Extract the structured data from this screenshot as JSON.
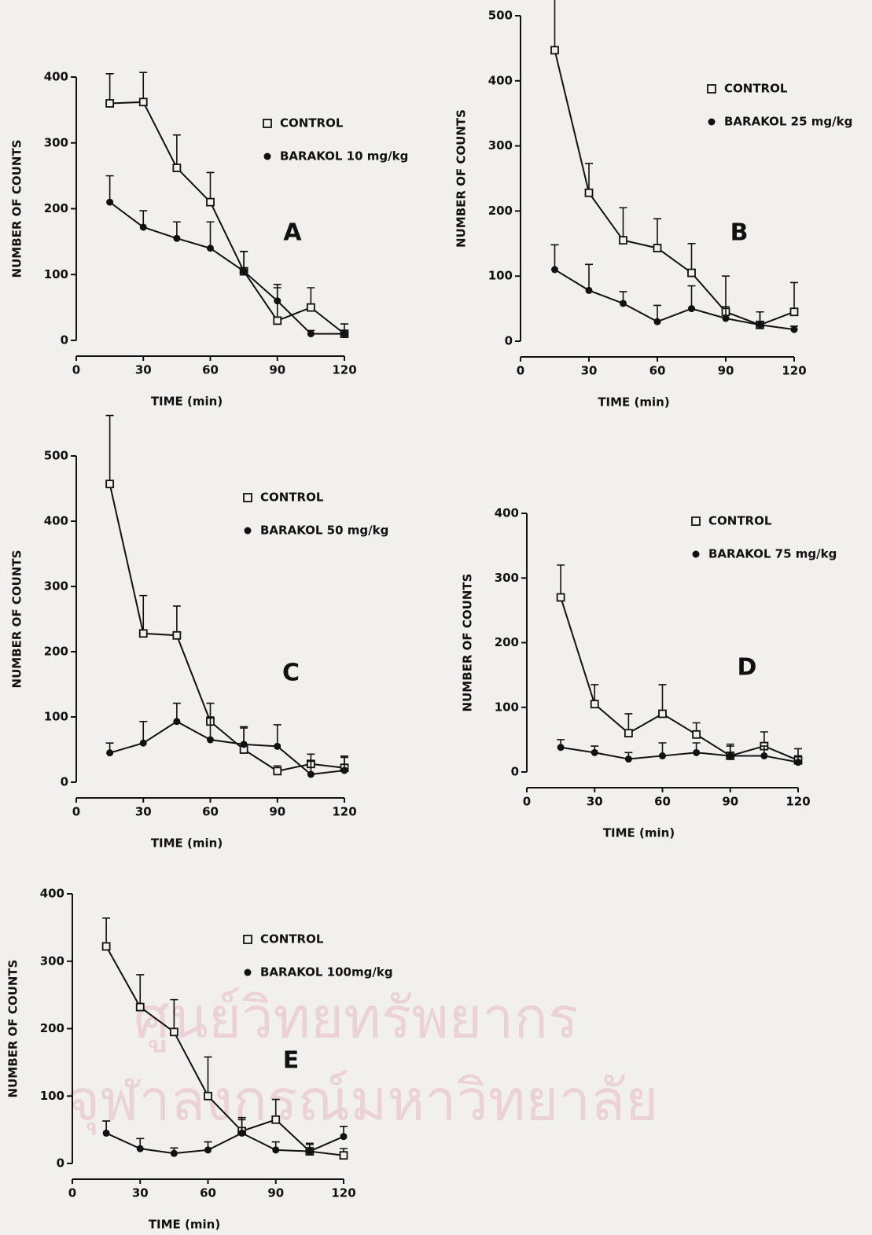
{
  "watermark": [
    "ศูนย์วิทยทรัพยากร",
    "จุฬาลงกรณ์มหาวิทยาลัย"
  ],
  "chart_data": [
    {
      "type": "line",
      "panel_label": "A",
      "xlabel": "TIME (min)",
      "ylabel": "NUMBER OF COUNTS",
      "x": [
        15,
        30,
        45,
        60,
        75,
        90,
        105,
        120
      ],
      "xlim": [
        0,
        120
      ],
      "xticks": [
        0,
        30,
        60,
        90,
        120
      ],
      "ylim": [
        0,
        400
      ],
      "yticks": [
        0,
        100,
        200,
        300,
        400
      ],
      "series": [
        {
          "name": "CONTROL",
          "marker": "square",
          "color": "#111111",
          "values": [
            360,
            362,
            262,
            210,
            105,
            30,
            50,
            10
          ],
          "errors": [
            45,
            45,
            50,
            45,
            30,
            50,
            30,
            15
          ]
        },
        {
          "name": "BARAKOL 10 mg/kg",
          "marker": "circle",
          "color": "#111111",
          "values": [
            210,
            172,
            155,
            140,
            105,
            60,
            10,
            10
          ],
          "errors": [
            40,
            25,
            25,
            40,
            30,
            25,
            5,
            5
          ]
        }
      ]
    },
    {
      "type": "line",
      "panel_label": "B",
      "xlabel": "TIME (min)",
      "ylabel": "NUMBER OF COUNTS",
      "x": [
        15,
        30,
        45,
        60,
        75,
        90,
        105,
        120
      ],
      "xlim": [
        0,
        120
      ],
      "xticks": [
        0,
        30,
        60,
        90,
        120
      ],
      "ylim": [
        0,
        500
      ],
      "yticks": [
        0,
        100,
        200,
        300,
        400,
        500
      ],
      "series": [
        {
          "name": "CONTROL",
          "marker": "square",
          "color": "#111111",
          "values": [
            447,
            228,
            155,
            143,
            105,
            45,
            25,
            45
          ],
          "errors": [
            100,
            45,
            50,
            45,
            45,
            55,
            20,
            45
          ]
        },
        {
          "name": "BARAKOL 25 mg/kg",
          "marker": "circle",
          "color": "#111111",
          "values": [
            110,
            78,
            58,
            30,
            50,
            35,
            25,
            18
          ],
          "errors": [
            38,
            40,
            18,
            25,
            35,
            18,
            20,
            5
          ]
        }
      ]
    },
    {
      "type": "line",
      "panel_label": "C",
      "xlabel": "TIME (min)",
      "ylabel": "NUMBER OF COUNTS",
      "x": [
        15,
        30,
        45,
        60,
        75,
        90,
        105,
        120
      ],
      "xlim": [
        0,
        120
      ],
      "xticks": [
        0,
        30,
        60,
        90,
        120
      ],
      "ylim": [
        0,
        500
      ],
      "yticks": [
        0,
        100,
        200,
        300,
        400,
        500
      ],
      "series": [
        {
          "name": "CONTROL",
          "marker": "square",
          "color": "#111111",
          "values": [
            457,
            228,
            225,
            93,
            50,
            17,
            28,
            22
          ],
          "errors": [
            105,
            58,
            45,
            28,
            35,
            8,
            15,
            18
          ]
        },
        {
          "name": "BARAKOL 50 mg/kg",
          "marker": "circle",
          "color": "#111111",
          "values": [
            45,
            60,
            93,
            65,
            58,
            55,
            12,
            18
          ],
          "errors": [
            15,
            33,
            28,
            35,
            25,
            33,
            20,
            20
          ]
        }
      ]
    },
    {
      "type": "line",
      "panel_label": "D",
      "xlabel": "TIME (min)",
      "ylabel": "NUMBER OF COUNTS",
      "x": [
        15,
        30,
        45,
        60,
        75,
        90,
        105,
        120
      ],
      "xlim": [
        0,
        120
      ],
      "xticks": [
        0,
        30,
        60,
        90,
        120
      ],
      "ylim": [
        0,
        400
      ],
      "yticks": [
        0,
        100,
        200,
        300,
        400
      ],
      "series": [
        {
          "name": "CONTROL",
          "marker": "square",
          "color": "#111111",
          "values": [
            270,
            105,
            60,
            90,
            58,
            25,
            40,
            18
          ],
          "errors": [
            50,
            30,
            30,
            45,
            18,
            15,
            22,
            18
          ]
        },
        {
          "name": "BARAKOL 75 mg/kg",
          "marker": "circle",
          "color": "#111111",
          "values": [
            38,
            30,
            20,
            25,
            30,
            25,
            25,
            15
          ],
          "errors": [
            12,
            10,
            10,
            20,
            15,
            18,
            15,
            10
          ]
        }
      ]
    },
    {
      "type": "line",
      "panel_label": "E",
      "xlabel": "TIME (min)",
      "ylabel": "NUMBER OF COUNTS",
      "x": [
        15,
        30,
        45,
        60,
        75,
        90,
        105,
        120
      ],
      "xlim": [
        0,
        120
      ],
      "xticks": [
        0,
        30,
        60,
        90,
        120
      ],
      "ylim": [
        0,
        400
      ],
      "yticks": [
        0,
        100,
        200,
        300,
        400
      ],
      "series": [
        {
          "name": "CONTROL",
          "marker": "square",
          "color": "#111111",
          "values": [
            322,
            232,
            195,
            100,
            48,
            65,
            18,
            12
          ],
          "errors": [
            42,
            48,
            48,
            58,
            20,
            30,
            12,
            10
          ]
        },
        {
          "name": "BARAKOL 100mg/kg",
          "marker": "circle",
          "color": "#111111",
          "values": [
            45,
            22,
            15,
            20,
            45,
            20,
            18,
            40
          ],
          "errors": [
            18,
            15,
            8,
            12,
            20,
            12,
            10,
            15
          ]
        }
      ]
    }
  ]
}
